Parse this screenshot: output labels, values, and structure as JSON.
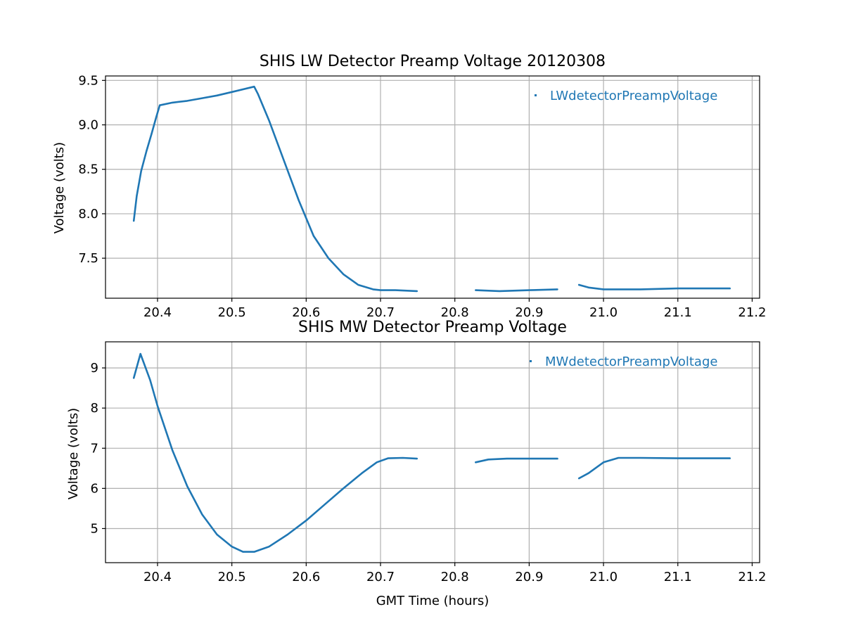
{
  "chart_data": [
    {
      "type": "line",
      "title": "SHIS LW Detector Preamp Voltage 20120308",
      "xlabel": "",
      "ylabel": "Voltage (volts)",
      "xlim": [
        20.33,
        21.21
      ],
      "ylim": [
        7.05,
        9.55
      ],
      "xticks": [
        20.4,
        20.5,
        20.6,
        20.7,
        20.8,
        20.9,
        21.0,
        21.1,
        21.2
      ],
      "xtick_labels": [
        "20.4",
        "20.5",
        "20.6",
        "20.7",
        "20.8",
        "20.9",
        "21.0",
        "21.1",
        "21.2"
      ],
      "yticks": [
        7.5,
        8.0,
        8.5,
        9.0,
        9.5
      ],
      "ytick_labels": [
        "7.5",
        "8.0",
        "8.5",
        "9.0",
        "9.5"
      ],
      "grid": true,
      "legend": "top-right",
      "series": [
        {
          "name": "LWdetectorPreampVoltage",
          "color": "#1f77b4",
          "segments": [
            [
              [
                20.368,
                7.92
              ],
              [
                20.372,
                8.2
              ],
              [
                20.378,
                8.48
              ],
              [
                20.385,
                8.7
              ],
              [
                20.392,
                8.9
              ],
              [
                20.398,
                9.08
              ],
              [
                20.403,
                9.22
              ],
              [
                20.42,
                9.25
              ],
              [
                20.44,
                9.27
              ],
              [
                20.46,
                9.3
              ],
              [
                20.48,
                9.33
              ],
              [
                20.5,
                9.37
              ],
              [
                20.53,
                9.43
              ],
              [
                20.535,
                9.35
              ],
              [
                20.55,
                9.05
              ],
              [
                20.57,
                8.6
              ],
              [
                20.59,
                8.15
              ],
              [
                20.61,
                7.75
              ],
              [
                20.63,
                7.5
              ],
              [
                20.65,
                7.32
              ],
              [
                20.67,
                7.2
              ],
              [
                20.69,
                7.15
              ],
              [
                20.7,
                7.14
              ],
              [
                20.72,
                7.14
              ],
              [
                20.749,
                7.13
              ]
            ],
            [
              [
                20.828,
                7.14
              ],
              [
                20.86,
                7.13
              ],
              [
                20.9,
                7.14
              ],
              [
                20.938,
                7.15
              ]
            ],
            [
              [
                20.967,
                7.2
              ],
              [
                20.98,
                7.17
              ],
              [
                21.0,
                7.15
              ],
              [
                21.05,
                7.15
              ],
              [
                21.1,
                7.16
              ],
              [
                21.17,
                7.16
              ]
            ]
          ]
        }
      ]
    },
    {
      "type": "line",
      "title": "SHIS MW Detector Preamp Voltage",
      "xlabel": "GMT Time (hours)",
      "ylabel": "Voltage (volts)",
      "xlim": [
        20.33,
        21.21
      ],
      "ylim": [
        4.15,
        9.65
      ],
      "xticks": [
        20.4,
        20.5,
        20.6,
        20.7,
        20.8,
        20.9,
        21.0,
        21.1,
        21.2
      ],
      "xtick_labels": [
        "20.4",
        "20.5",
        "20.6",
        "20.7",
        "20.8",
        "20.9",
        "21.0",
        "21.1",
        "21.2"
      ],
      "yticks": [
        5,
        6,
        7,
        8,
        9
      ],
      "ytick_labels": [
        "5",
        "6",
        "7",
        "8",
        "9"
      ],
      "grid": true,
      "legend": "top-right",
      "series": [
        {
          "name": "MWdetectorPreampVoltage",
          "color": "#1f77b4",
          "segments": [
            [
              [
                20.368,
                8.75
              ],
              [
                20.377,
                9.35
              ],
              [
                20.39,
                8.7
              ],
              [
                20.4,
                8.05
              ],
              [
                20.42,
                6.95
              ],
              [
                20.44,
                6.05
              ],
              [
                20.46,
                5.35
              ],
              [
                20.48,
                4.85
              ],
              [
                20.5,
                4.55
              ],
              [
                20.515,
                4.42
              ],
              [
                20.53,
                4.42
              ],
              [
                20.55,
                4.55
              ],
              [
                20.575,
                4.85
              ],
              [
                20.6,
                5.2
              ],
              [
                20.625,
                5.6
              ],
              [
                20.65,
                6.0
              ],
              [
                20.675,
                6.38
              ],
              [
                20.695,
                6.65
              ],
              [
                20.71,
                6.75
              ],
              [
                20.73,
                6.76
              ],
              [
                20.749,
                6.74
              ]
            ],
            [
              [
                20.828,
                6.65
              ],
              [
                20.845,
                6.72
              ],
              [
                20.87,
                6.74
              ],
              [
                20.9,
                6.74
              ],
              [
                20.938,
                6.74
              ]
            ],
            [
              [
                20.967,
                6.25
              ],
              [
                20.98,
                6.38
              ],
              [
                21.0,
                6.65
              ],
              [
                21.02,
                6.76
              ],
              [
                21.05,
                6.76
              ],
              [
                21.1,
                6.75
              ],
              [
                21.17,
                6.75
              ]
            ]
          ]
        }
      ]
    }
  ]
}
